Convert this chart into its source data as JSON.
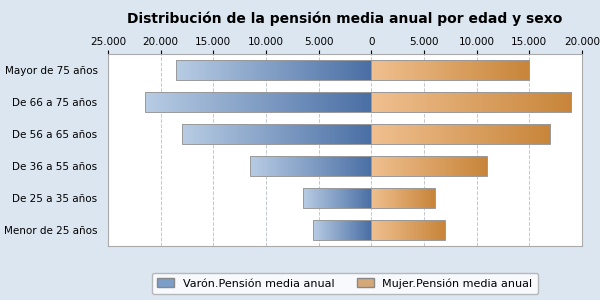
{
  "title": "Distribución de la pensión media anual por edad y sexo",
  "categories": [
    "Mayor de 75 años",
    "De 66 a 75 años",
    "De 56 a 65 años",
    "De 36 a 55 años",
    "De 25 a 35 años",
    "Menor de 25 años"
  ],
  "varon_values": [
    -18500,
    -21500,
    -18000,
    -11500,
    -6500,
    -5500
  ],
  "mujer_values": [
    15000,
    19000,
    17000,
    11000,
    6000,
    7000
  ],
  "xlim": [
    -25000,
    20000
  ],
  "xticks": [
    -25000,
    -20000,
    -15000,
    -10000,
    -5000,
    0,
    5000,
    10000,
    15000,
    20000
  ],
  "xtick_labels": [
    "25.000",
    "20.000",
    "15.000",
    "10.000",
    "5.000",
    "0",
    "5.000",
    "10.000",
    "15.000",
    "20.000"
  ],
  "legend_varon": "Varón.Pensión media anual",
  "legend_mujer": "Mujer.Pensión media anual",
  "bar_edgecolor": "#999999",
  "background_color": "#dce6f1",
  "plot_background": "#ffffff",
  "varon_light": "#b8cce4",
  "varon_dark": "#4a6fa5",
  "mujer_light": "#f0c090",
  "mujer_dark": "#c8853a",
  "title_fontsize": 10,
  "axis_fontsize": 7.5,
  "legend_fontsize": 8
}
